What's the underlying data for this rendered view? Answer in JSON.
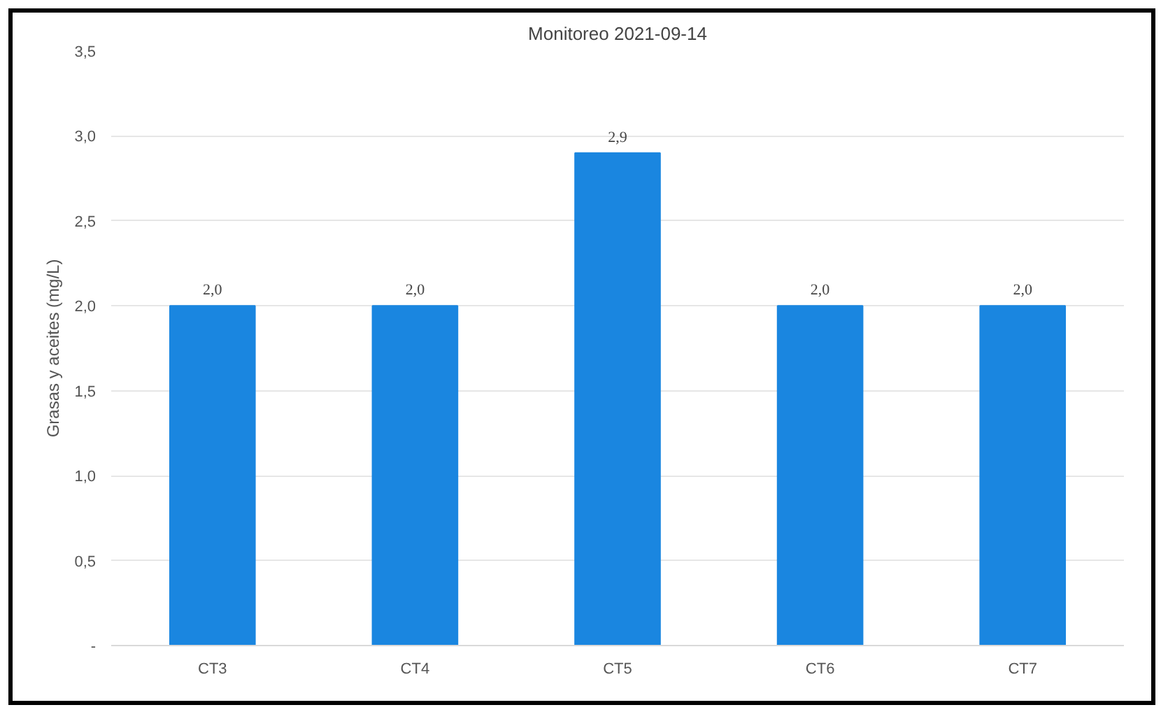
{
  "chart_data": {
    "type": "bar",
    "title": "Monitoreo 2021-09-14",
    "ylabel": "Grasas y aceites (mg/L)",
    "categories": [
      "CT3",
      "CT4",
      "CT5",
      "CT6",
      "CT7"
    ],
    "values": [
      2.0,
      2.0,
      2.9,
      2.0,
      2.0
    ],
    "value_labels": [
      "2,0",
      "2,0",
      "2,9",
      "2,0",
      "2,0"
    ],
    "color": "#1a86e0",
    "ylim": [
      0,
      3.5
    ],
    "yticks": [
      {
        "value": 0,
        "label": "-"
      },
      {
        "value": 0.5,
        "label": "0,5"
      },
      {
        "value": 1.0,
        "label": "1,0"
      },
      {
        "value": 1.5,
        "label": "1,5"
      },
      {
        "value": 2.0,
        "label": "2,0"
      },
      {
        "value": 2.5,
        "label": "2,5"
      },
      {
        "value": 3.0,
        "label": "3,0"
      },
      {
        "value": 3.5,
        "label": "3,5"
      }
    ],
    "grid": "y"
  }
}
